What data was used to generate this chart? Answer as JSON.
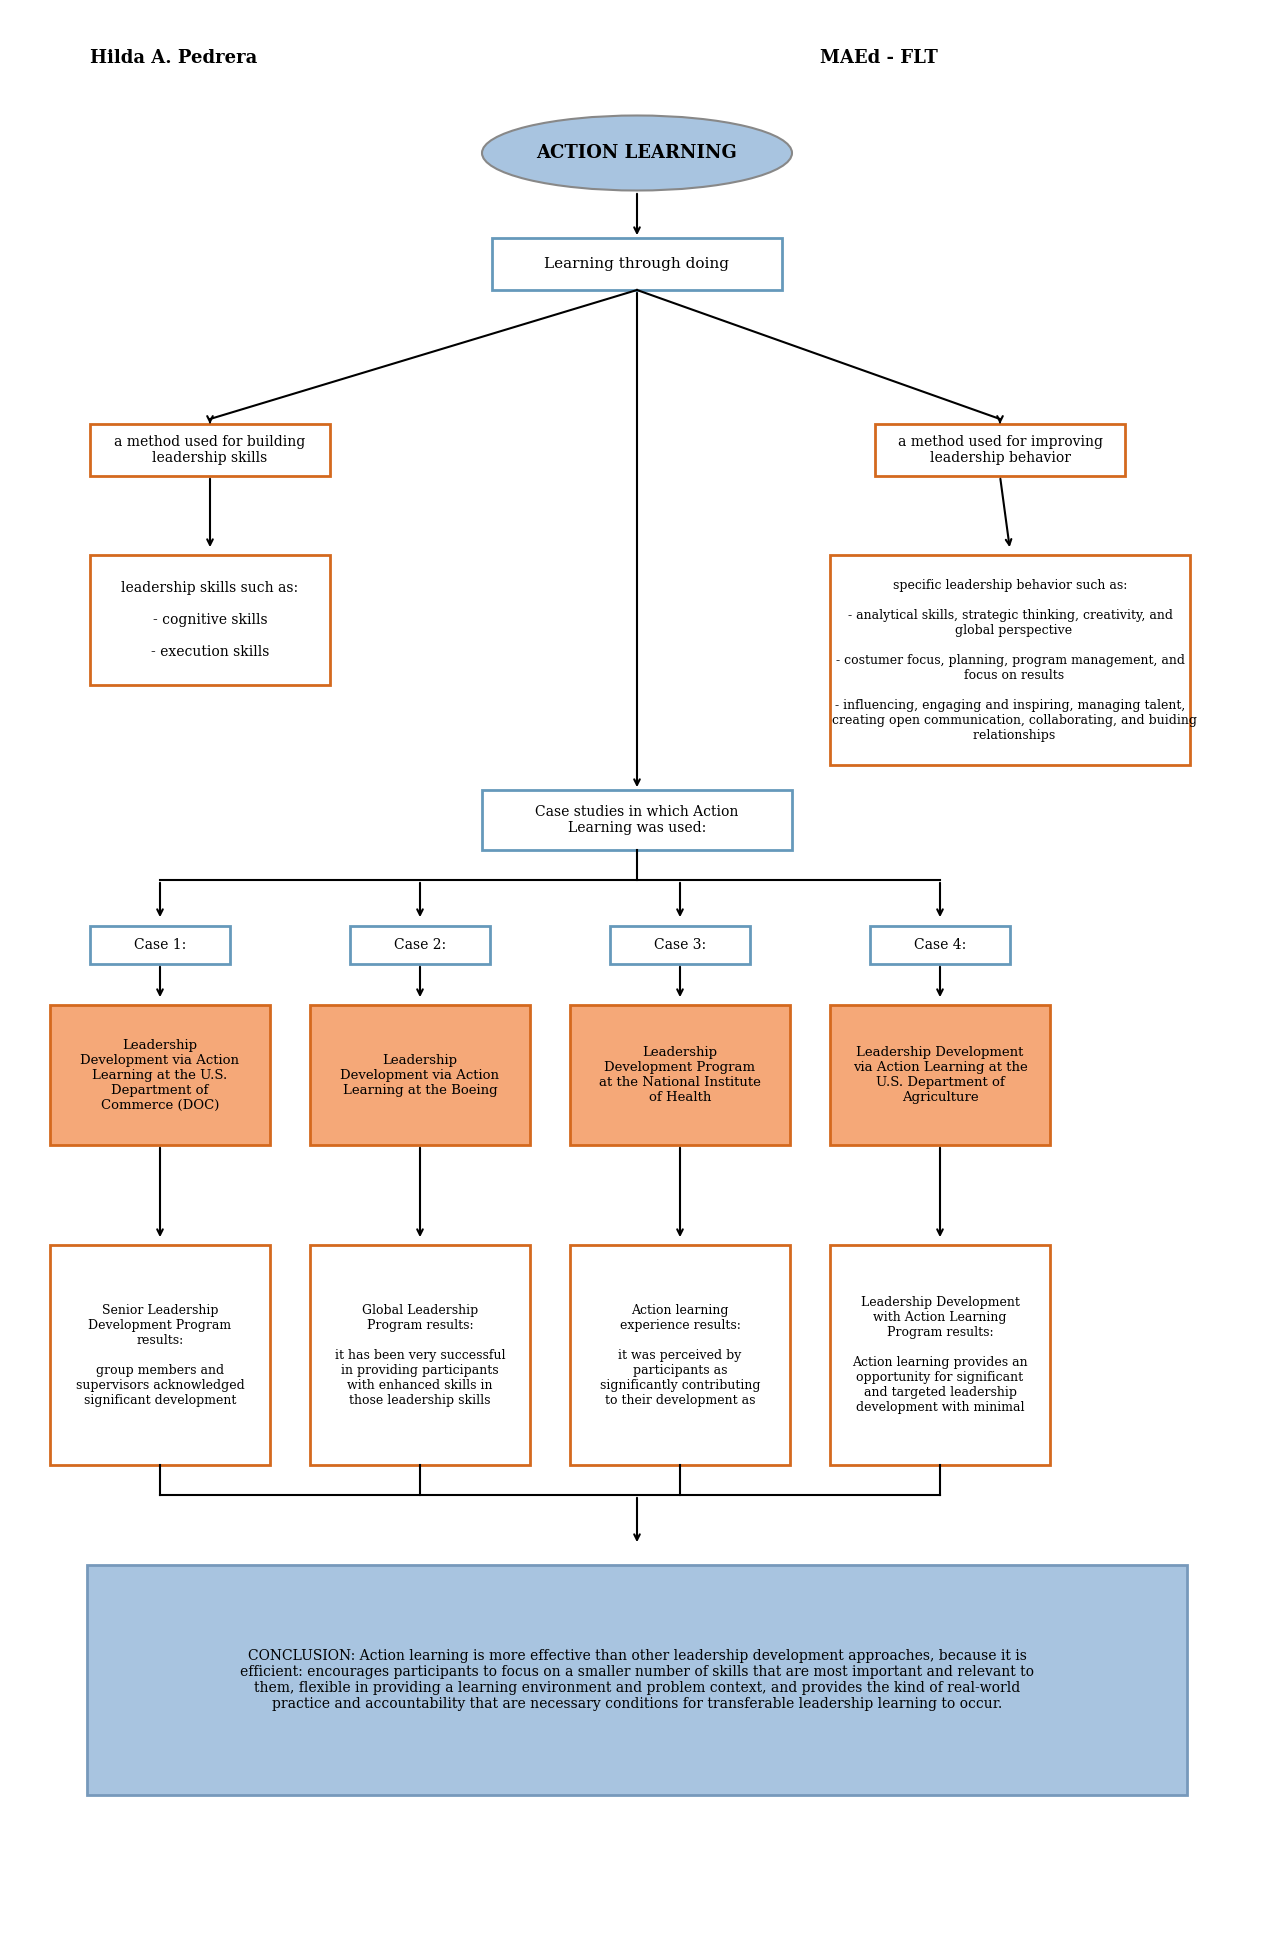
{
  "title_left": "Hilda A. Pedrera",
  "title_right": "MAEd - FLT",
  "bg_color": "#ffffff",
  "ellipse_facecolor": "#a8c4e0",
  "ellipse_edgecolor": "#888888",
  "blue_border_color": "#6699bb",
  "orange_border_color": "#d4691e",
  "salmon_fill_color": "#f5a878",
  "conclusion_bg": "#a8c4e0",
  "conclusion_border": "#7799bb",
  "ellipse_text": "ACTION LEARNING",
  "ltd_text": "Learning through doing",
  "building_text": "a method used for building\nleadership skills",
  "improving_text": "a method used for improving\nleadership behavior",
  "leadership_skills_text": "leadership skills such as:\n\n- cognitive skills\n\n- execution skills",
  "specific_behavior_text": "specific leadership behavior such as:\n\n- analytical skills, strategic thinking, creativity, and\n  global perspective\n\n- costumer focus, planning, program management, and\n  focus on results\n\n- influencing, engaging and inspiring, managing talent,\n  creating open communication, collaborating, and buiding\n  relationships",
  "case_studies_text": "Case studies in which Action\nLearning was used:",
  "case_labels": [
    "Case 1:",
    "Case 2:",
    "Case 3:",
    "Case 4:"
  ],
  "case_descs": [
    "Leadership\nDevelopment via Action\nLearning at the U.S.\nDepartment of\nCommerce (DOC)",
    "Leadership\nDevelopment via Action\nLearning at the Boeing",
    "Leadership\nDevelopment Program\nat the National Institute\nof Health",
    "Leadership Development\nvia Action Learning at the\nU.S. Department of\nAgriculture"
  ],
  "case_results": [
    "Senior Leadership\nDevelopment Program\nresults:\n\ngroup members and\nsupervisors acknowledged\nsignificant development",
    "Global Leadership\nProgram results:\n\nit has been very successful\nin providing participants\nwith enhanced skills in\nthose leadership skills",
    "Action learning\nexperience results:\n\nit was perceived by\nparticipants as\nsignificantly contributing\nto their development as",
    "Leadership Development\nwith Action Learning\nProgram results:\n\nAction learning provides an\nopportunity for significant\nand targeted leadership\ndevelopment with minimal"
  ],
  "conclusion_text": "CONCLUSION: Action learning is more effective than other leadership development approaches, because it is\nefficient: encourages participants to focus on a smaller number of skills that are most important and relevant to\nthem, flexible in providing a learning environment and problem context, and provides the kind of real-world\npractice and accountability that are necessary conditions for transferable leadership learning to occur."
}
